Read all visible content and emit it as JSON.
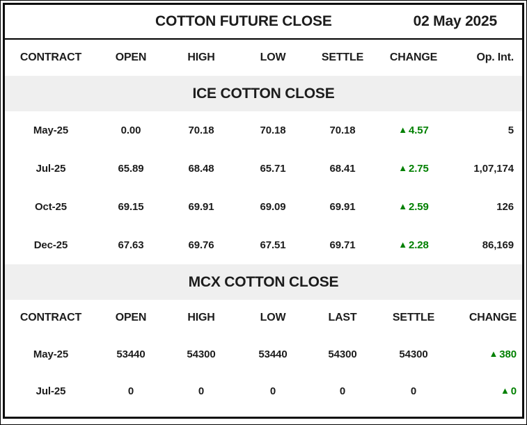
{
  "header": {
    "title": "COTTON FUTURE CLOSE",
    "date": "02 May 2025"
  },
  "icons": {
    "up_triangle": "▲"
  },
  "colors": {
    "up_green": "#008000",
    "band_grey": "#efefef",
    "text_black": "#1c1c1c",
    "border_black": "#000000"
  },
  "ice": {
    "section_title": "ICE COTTON CLOSE",
    "columns": [
      "CONTRACT",
      "OPEN",
      "HIGH",
      "LOW",
      "SETTLE",
      "CHANGE",
      "Op. Int."
    ],
    "rows": [
      {
        "contract": "May-25",
        "open": "0.00",
        "high": "70.18",
        "low": "70.18",
        "settle": "70.18",
        "change": "4.57",
        "op_int": "5"
      },
      {
        "contract": "Jul-25",
        "open": "65.89",
        "high": "68.48",
        "low": "65.71",
        "settle": "68.41",
        "change": "2.75",
        "op_int": "1,07,174"
      },
      {
        "contract": "Oct-25",
        "open": "69.15",
        "high": "69.91",
        "low": "69.09",
        "settle": "69.91",
        "change": "2.59",
        "op_int": "126"
      },
      {
        "contract": "Dec-25",
        "open": "67.63",
        "high": "69.76",
        "low": "67.51",
        "settle": "69.71",
        "change": "2.28",
        "op_int": "86,169"
      }
    ]
  },
  "mcx": {
    "section_title": "MCX COTTON CLOSE",
    "columns": [
      "CONTRACT",
      "OPEN",
      "HIGH",
      "LOW",
      "LAST",
      "SETTLE",
      "CHANGE"
    ],
    "rows": [
      {
        "contract": "May-25",
        "open": "53440",
        "high": "54300",
        "low": "53440",
        "last": "54300",
        "settle": "54300",
        "change": "380"
      },
      {
        "contract": "Jul-25",
        "open": "0",
        "high": "0",
        "low": "0",
        "last": "0",
        "settle": "0",
        "change": "0"
      }
    ]
  },
  "chart_data": [
    {
      "type": "table",
      "title": "ICE COTTON CLOSE",
      "columns": [
        "CONTRACT",
        "OPEN",
        "HIGH",
        "LOW",
        "SETTLE",
        "CHANGE",
        "Op. Int."
      ],
      "rows": [
        [
          "May-25",
          "0.00",
          "70.18",
          "70.18",
          "70.18",
          "▲4.57",
          "5"
        ],
        [
          "Jul-25",
          "65.89",
          "68.48",
          "65.71",
          "68.41",
          "▲2.75",
          "1,07,174"
        ],
        [
          "Oct-25",
          "69.15",
          "69.91",
          "69.09",
          "69.91",
          "▲2.59",
          "126"
        ],
        [
          "Dec-25",
          "67.63",
          "69.76",
          "67.51",
          "69.71",
          "▲2.28",
          "86,169"
        ]
      ]
    },
    {
      "type": "table",
      "title": "MCX COTTON CLOSE",
      "columns": [
        "CONTRACT",
        "OPEN",
        "HIGH",
        "LOW",
        "LAST",
        "SETTLE",
        "CHANGE"
      ],
      "rows": [
        [
          "May-25",
          "53440",
          "54300",
          "53440",
          "54300",
          "54300",
          "▲380"
        ],
        [
          "Jul-25",
          "0",
          "0",
          "0",
          "0",
          "0",
          "▲0"
        ]
      ]
    }
  ]
}
